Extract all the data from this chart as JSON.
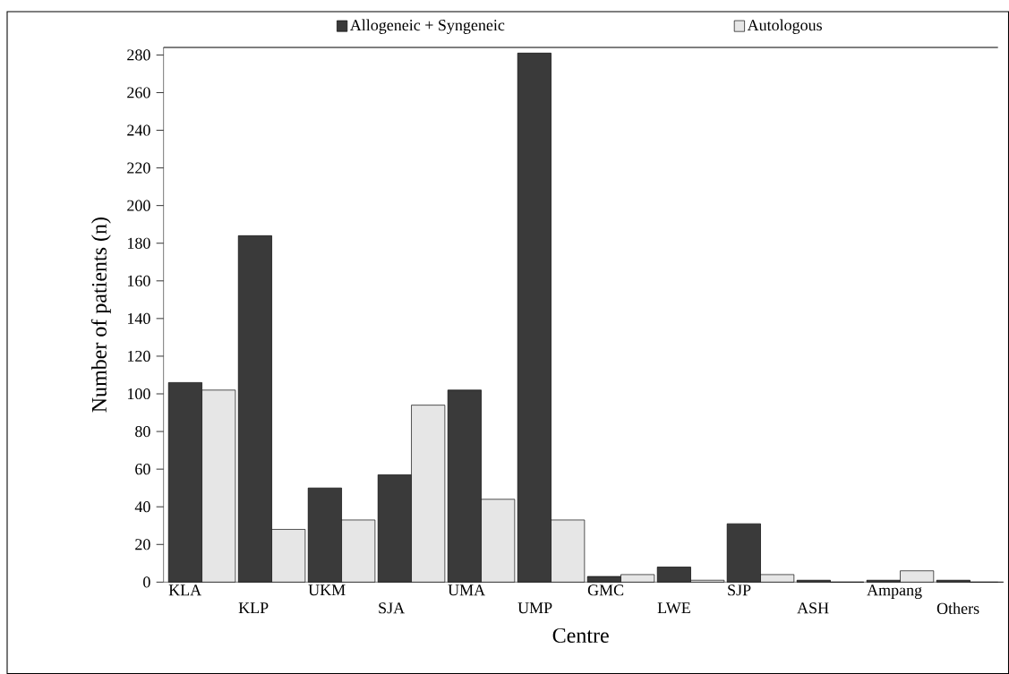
{
  "chart_data": {
    "type": "bar",
    "xlabel": "Centre",
    "ylabel": "Number of patients (n)",
    "categories": [
      "KLA",
      "KLP",
      "UKM",
      "SJA",
      "UMA",
      "UMP",
      "GMC",
      "LWE",
      "SJP",
      "ASH",
      "Ampang",
      "Others"
    ],
    "series": [
      {
        "name": "Allogeneic + Syngeneic",
        "color": "#3a3a3a",
        "values": [
          106,
          184,
          50,
          57,
          102,
          281,
          3,
          8,
          31,
          1,
          1,
          1
        ]
      },
      {
        "name": "Autologous",
        "color": "#e6e6e6",
        "values": [
          102,
          28,
          33,
          94,
          44,
          33,
          4,
          1,
          4,
          0,
          6,
          0
        ]
      }
    ],
    "ylim": [
      0,
      284
    ],
    "yticks": [
      0,
      20,
      40,
      60,
      80,
      100,
      120,
      140,
      160,
      180,
      200,
      220,
      240,
      260,
      280
    ],
    "legend": "top"
  }
}
